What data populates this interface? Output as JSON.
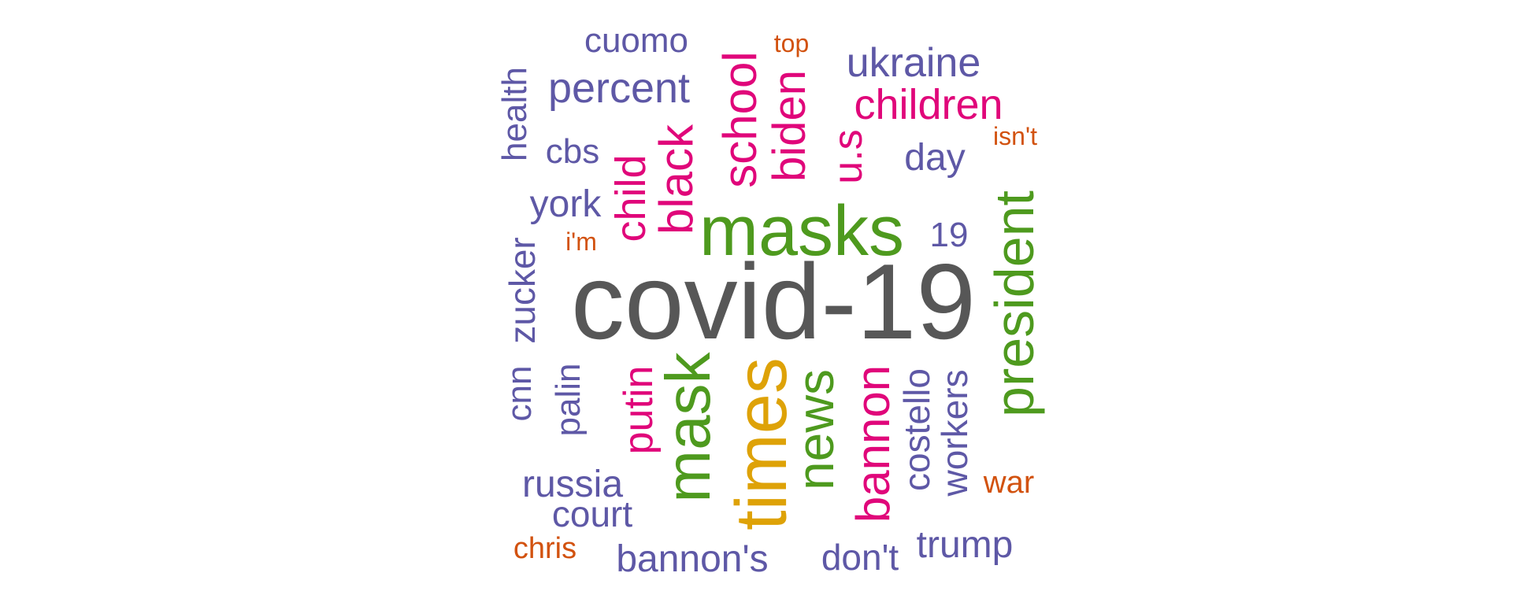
{
  "colors": {
    "purple": "#5E58A6",
    "pink": "#E0067A",
    "green": "#4E9A1E",
    "orange": "#D2520F",
    "gold": "#DEA207",
    "gray": "#575757"
  },
  "words": [
    {
      "text": "covid-19"
    },
    {
      "text": "masks"
    },
    {
      "text": "times"
    },
    {
      "text": "mask"
    },
    {
      "text": "president"
    },
    {
      "text": "news"
    },
    {
      "text": "bannon"
    },
    {
      "text": "black"
    },
    {
      "text": "school"
    },
    {
      "text": "biden"
    },
    {
      "text": "children"
    },
    {
      "text": "ukraine"
    },
    {
      "text": "percent"
    },
    {
      "text": "child"
    },
    {
      "text": "u.s"
    },
    {
      "text": "putin"
    },
    {
      "text": "day"
    },
    {
      "text": "york"
    },
    {
      "text": "russia"
    },
    {
      "text": "bannon's"
    },
    {
      "text": "trump"
    },
    {
      "text": "don't"
    },
    {
      "text": "court"
    },
    {
      "text": "cuomo"
    },
    {
      "text": "zucker"
    },
    {
      "text": "costello"
    },
    {
      "text": "workers"
    },
    {
      "text": "health"
    },
    {
      "text": "cbs"
    },
    {
      "text": "palin"
    },
    {
      "text": "cnn"
    },
    {
      "text": "19"
    },
    {
      "text": "war"
    },
    {
      "text": "chris"
    },
    {
      "text": "top"
    },
    {
      "text": "isn't"
    },
    {
      "text": "i'm"
    }
  ]
}
